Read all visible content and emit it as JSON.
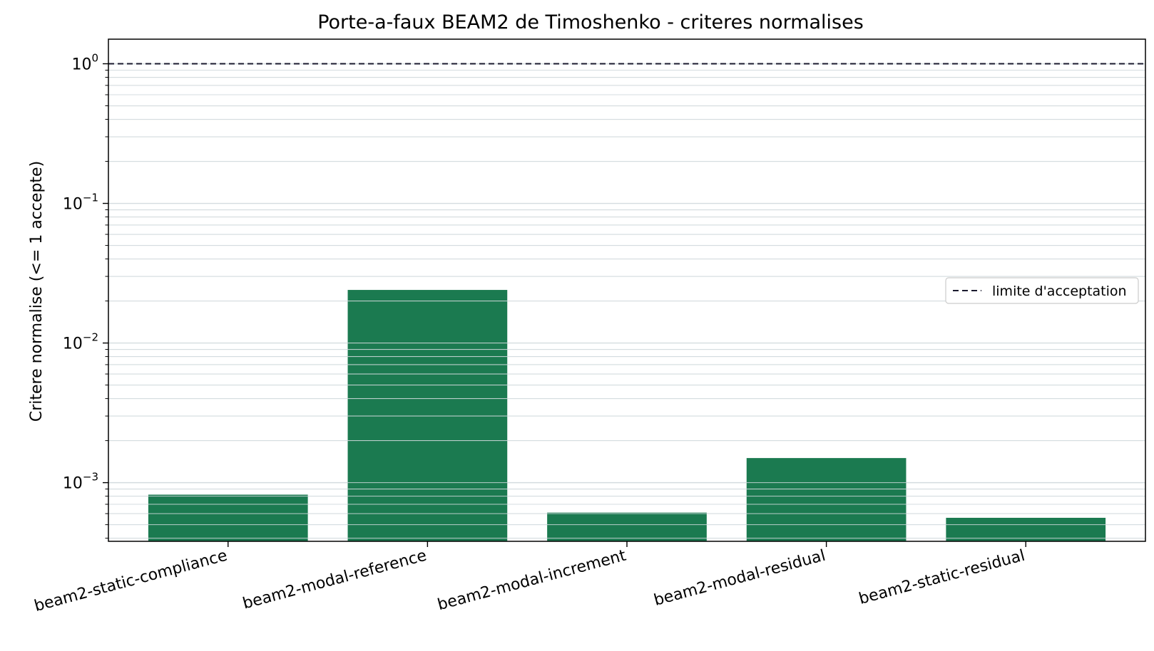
{
  "chart_data": {
    "type": "bar",
    "title": "Porte-a-faux BEAM2 de Timoshenko - criteres normalises",
    "ylabel": "Critere normalise (<= 1 accepte)",
    "xlabel": "",
    "yscale": "log",
    "ylim": [
      0.00038,
      1.5
    ],
    "categories": [
      "beam2-static-compliance",
      "beam2-modal-reference",
      "beam2-modal-increment",
      "beam2-modal-residual",
      "beam2-static-residual"
    ],
    "values": [
      0.00082,
      0.024,
      0.00061,
      0.0015,
      0.00056
    ],
    "bar_color": "#1b7a50",
    "y_ticks": [
      {
        "value": 0.001,
        "base": "10",
        "exp": "−3"
      },
      {
        "value": 0.01,
        "base": "10",
        "exp": "−2"
      },
      {
        "value": 0.1,
        "base": "10",
        "exp": "−1"
      },
      {
        "value": 1,
        "base": "10",
        "exp": "0"
      }
    ],
    "threshold": {
      "value": 1,
      "style": "dashed",
      "color": "#1a1a2e",
      "label": "limite d'acceptation"
    },
    "legend": {
      "position": "center-right",
      "entries": [
        "limite d'acceptation"
      ]
    },
    "grid": {
      "y_major": true,
      "y_minor": true,
      "color": "#d5dde0"
    }
  }
}
